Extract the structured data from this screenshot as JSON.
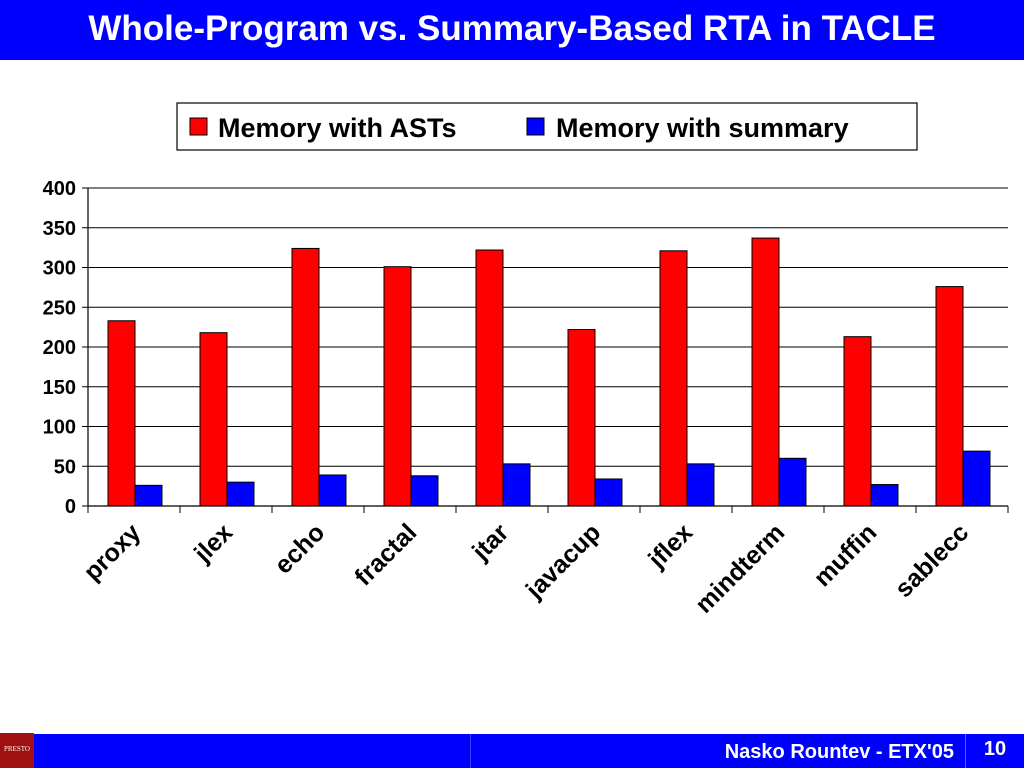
{
  "slide": {
    "title": "Whole-Program vs. Summary-Based RTA in TACLE",
    "footer_author": "Nasko Rountev - ETX'05",
    "page_number": "10",
    "logo_text": "PRESTO"
  },
  "colors": {
    "title_bar": "#0000ff",
    "footer_bar": "#0000ff",
    "series_asts": "#ff0000",
    "series_summary": "#0000ff"
  },
  "chart_data": {
    "type": "bar",
    "title": "",
    "xlabel": "",
    "ylabel": "",
    "categories": [
      "proxy",
      "jlex",
      "echo",
      "fractal",
      "jtar",
      "javacup",
      "jflex",
      "mindterm",
      "muffin",
      "sablecc"
    ],
    "series": [
      {
        "name": "Memory with ASTs",
        "color": "#ff0000",
        "values": [
          233,
          218,
          324,
          301,
          322,
          222,
          321,
          337,
          213,
          276
        ]
      },
      {
        "name": "Memory with summary",
        "color": "#0000ff",
        "values": [
          26,
          30,
          39,
          38,
          53,
          34,
          53,
          60,
          27,
          69
        ]
      }
    ],
    "ylim": [
      0,
      400
    ],
    "yticks": [
      "0",
      "50",
      "100",
      "150",
      "200",
      "250",
      "300",
      "350",
      "400"
    ],
    "grid": true,
    "legend_position": "top"
  }
}
